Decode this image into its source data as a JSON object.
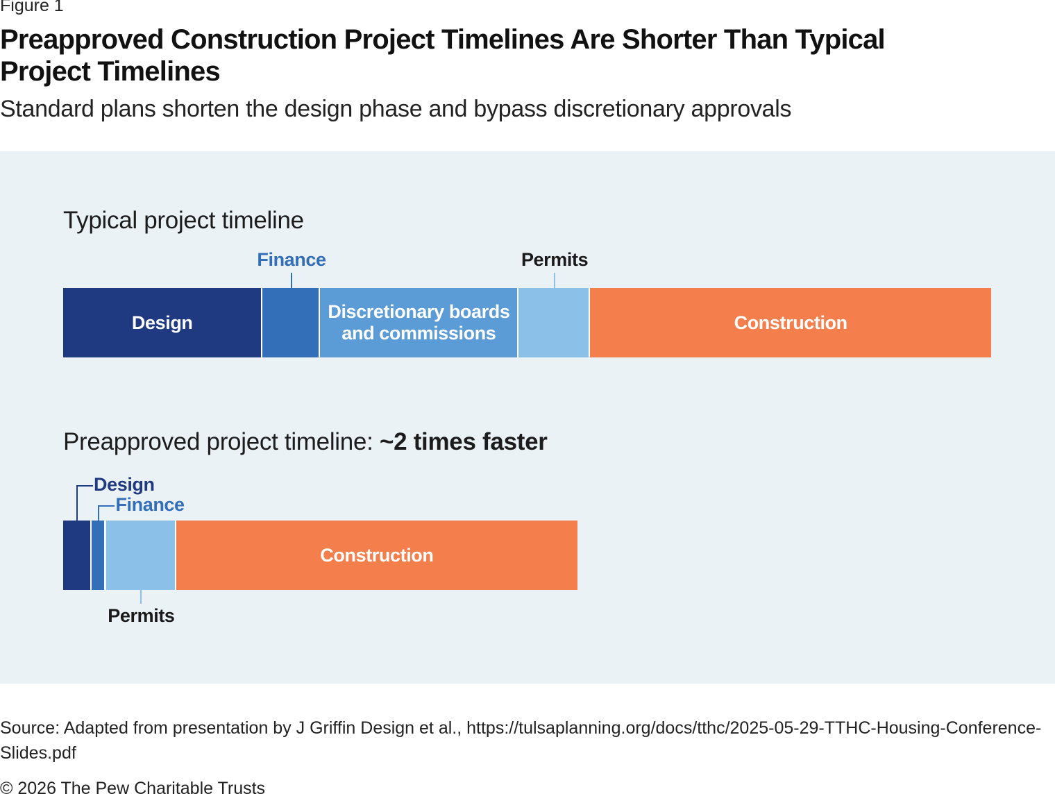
{
  "figure_label": "Figure 1",
  "title": "Preapproved Construction Project Timelines Are Shorter Than Typical Project Timelines",
  "subtitle": "Standard plans shorten the design phase and bypass discretionary approvals",
  "colors": {
    "design": "#1f3a80",
    "finance": "#336fb8",
    "discretionary": "#5b9bd6",
    "permits": "#8bc1e8",
    "construction": "#f47f4c",
    "panel_background": "#eaf2f6"
  },
  "chart_data": [
    {
      "type": "bar",
      "orientation": "horizontal",
      "stacked": true,
      "title": "Typical project timeline",
      "title_emphasis": "",
      "units": "relative duration (share of typical timeline)",
      "segments": [
        {
          "name": "Design",
          "value": 21.5,
          "label": "Design",
          "callout": "",
          "color_key": "design"
        },
        {
          "name": "Finance",
          "value": 6.2,
          "label": "",
          "callout": "Finance",
          "color_key": "finance"
        },
        {
          "name": "Discretionary boards and commissions",
          "value": 21.4,
          "label": "Discretionary boards and commissions",
          "callout": "",
          "color_key": "discretionary"
        },
        {
          "name": "Permits",
          "value": 7.7,
          "label": "",
          "callout": "Permits",
          "color_key": "permits"
        },
        {
          "name": "Construction",
          "value": 43.2,
          "label": "Construction",
          "callout": "",
          "color_key": "construction"
        }
      ]
    },
    {
      "type": "bar",
      "orientation": "horizontal",
      "stacked": true,
      "title": "Preapproved project timeline: ",
      "title_emphasis": "~2 times faster",
      "units": "relative duration (share of typical timeline)",
      "segments": [
        {
          "name": "Design",
          "value": 3.1,
          "label": "",
          "callout": "Design",
          "color_key": "design"
        },
        {
          "name": "Finance",
          "value": 1.5,
          "label": "",
          "callout": "Finance",
          "color_key": "finance"
        },
        {
          "name": "Permits",
          "value": 7.6,
          "label": "",
          "callout": "Permits",
          "color_key": "permits"
        },
        {
          "name": "Construction",
          "value": 43.2,
          "label": "Construction",
          "callout": "",
          "color_key": "construction"
        }
      ]
    }
  ],
  "source": "Source: Adapted from presentation by J Griffin Design et al., https://tulsaplanning.org/docs/tthc/2025-05-29-TTHC-Housing-Conference-Slides.pdf",
  "copyright": "© 2026 The Pew Charitable Trusts"
}
